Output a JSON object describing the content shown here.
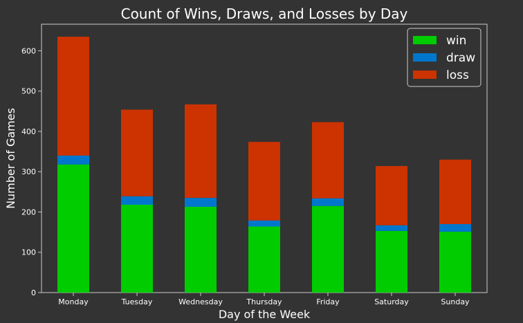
{
  "chart_data": {
    "type": "bar",
    "stacked": true,
    "title": "Count of Wins, Draws, and Losses by Day",
    "xlabel": "Day of the Week",
    "ylabel": "Number of Games",
    "ylim": [
      0,
      666
    ],
    "yticks": [
      0,
      100,
      200,
      300,
      400,
      500,
      600
    ],
    "grid": false,
    "legend_position": "top-right",
    "categories": [
      "Monday",
      "Tuesday",
      "Wednesday",
      "Thursday",
      "Friday",
      "Saturday",
      "Sunday"
    ],
    "series": [
      {
        "name": "win",
        "color": "#00cc00",
        "values": [
          318,
          218,
          213,
          164,
          215,
          153,
          151
        ]
      },
      {
        "name": "draw",
        "color": "#0077cc",
        "values": [
          22,
          21,
          22,
          15,
          19,
          14,
          19
        ]
      },
      {
        "name": "loss",
        "color": "#cc3300",
        "values": [
          295,
          215,
          232,
          195,
          189,
          147,
          160
        ]
      }
    ]
  },
  "colors": {
    "background": "#333333",
    "axes_edge": "#cccccc",
    "text": "#ffffff"
  }
}
